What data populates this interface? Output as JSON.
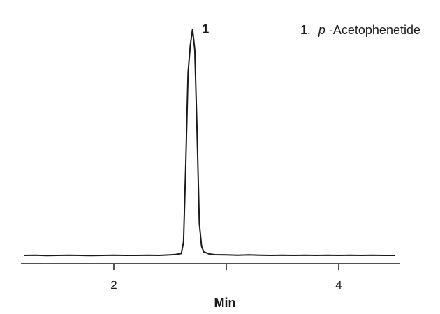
{
  "chart_data": {
    "type": "line",
    "title": "",
    "xlabel": "Min",
    "ylabel": "",
    "xlim": [
      1.2,
      4.6
    ],
    "ylim": [
      -0.02,
      1.0
    ],
    "x_ticks": [
      2,
      3,
      4
    ],
    "x_tick_labels": [
      "2",
      "",
      "4"
    ],
    "grid": false,
    "legend_position": "top-right",
    "legend": {
      "number": "1.",
      "italic_prefix": "p",
      "rest": "-Acetophenetide"
    },
    "annotations": [
      {
        "text": "1",
        "x": 2.71,
        "y": 1.0
      }
    ],
    "series": [
      {
        "x": [
          1.2,
          1.3,
          1.4,
          1.5,
          1.6,
          1.7,
          1.8,
          1.9,
          2.0,
          2.1,
          2.2,
          2.3,
          2.4,
          2.5,
          2.55,
          2.6,
          2.62,
          2.64,
          2.66,
          2.68,
          2.7,
          2.72,
          2.74,
          2.76,
          2.78,
          2.8,
          2.85,
          2.9,
          3.0,
          3.1,
          3.2,
          3.3,
          3.4,
          3.5,
          3.6,
          3.7,
          3.8,
          3.9,
          4.0,
          4.1,
          4.2,
          4.3,
          4.4,
          4.5
        ],
        "y": [
          0.0,
          0.001,
          -0.001,
          0.0,
          0.001,
          0.0,
          -0.001,
          0.0,
          0.001,
          0.0,
          0.0,
          0.001,
          0.0,
          0.002,
          0.004,
          0.008,
          0.06,
          0.4,
          0.8,
          0.92,
          0.99,
          0.9,
          0.55,
          0.14,
          0.04,
          0.015,
          0.006,
          0.003,
          0.002,
          0.001,
          0.002,
          0.001,
          0.0,
          0.001,
          0.0,
          0.001,
          0.0,
          0.001,
          0.0,
          0.001,
          0.0,
          0.001,
          0.0,
          0.0
        ]
      }
    ]
  }
}
